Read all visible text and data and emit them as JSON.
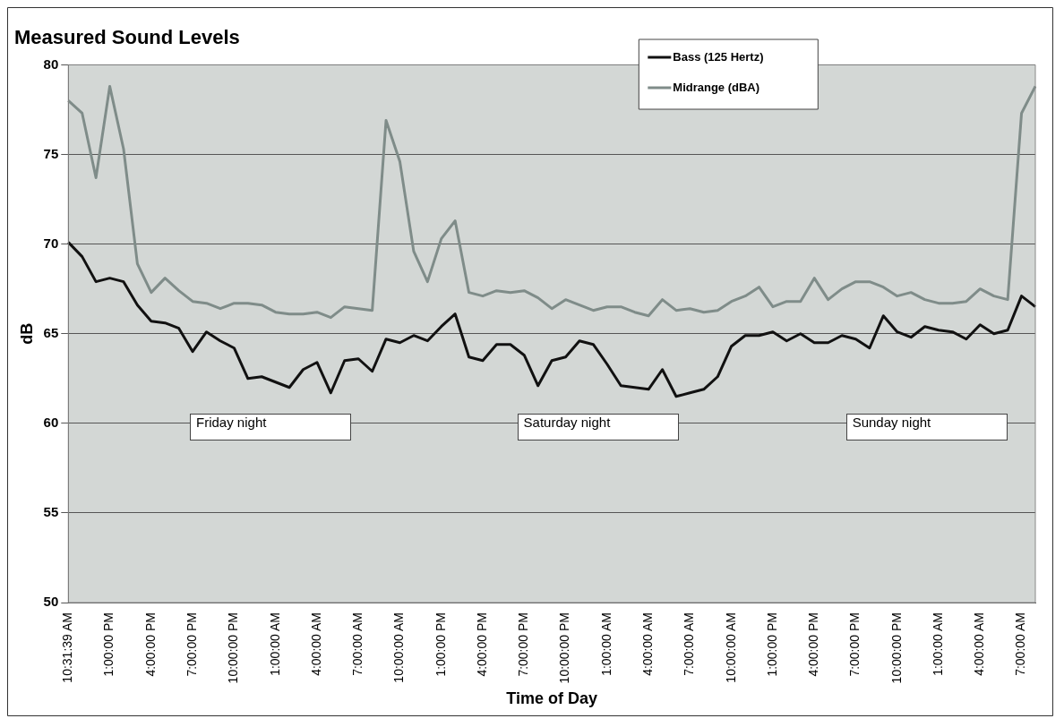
{
  "chart_data": {
    "type": "line",
    "title": "Measured Sound Levels",
    "xlabel": "Time of Day",
    "ylabel": "dB",
    "categories": [
      "10:31:39 AM",
      null,
      null,
      "1:00:00 PM",
      null,
      null,
      "4:00:00 PM",
      null,
      null,
      "7:00:00 PM",
      null,
      null,
      "10:00:00 PM",
      null,
      null,
      "1:00:00 AM",
      null,
      null,
      "4:00:00 AM",
      null,
      null,
      "7:00:00 AM",
      null,
      null,
      "10:00:00 AM",
      null,
      null,
      "1:00:00 PM",
      null,
      null,
      "4:00:00 PM",
      null,
      null,
      "7:00:00 PM",
      null,
      null,
      "10:00:00 PM",
      null,
      null,
      "1:00:00 AM",
      null,
      null,
      "4:00:00 AM",
      null,
      null,
      "7:00:00 AM",
      null,
      null,
      "10:00:00 AM",
      null,
      null,
      "1:00:00 PM",
      null,
      null,
      "4:00:00 PM",
      null,
      null,
      "7:00:00 PM",
      null,
      null,
      "10:00:00 PM",
      null,
      null,
      "1:00:00 AM",
      null,
      null,
      "4:00:00 AM",
      null,
      null,
      "7:00:00 AM",
      null
    ],
    "series": [
      {
        "name": "Bass (125 Hertz)",
        "color": "#111111",
        "values": [
          70.1,
          69.3,
          67.9,
          68.1,
          67.9,
          66.6,
          65.7,
          65.6,
          65.3,
          64.0,
          65.1,
          64.6,
          64.2,
          62.5,
          62.6,
          62.3,
          62.0,
          63.0,
          63.4,
          61.7,
          63.5,
          63.6,
          62.9,
          64.7,
          64.5,
          64.9,
          64.6,
          65.4,
          66.1,
          63.7,
          63.5,
          64.4,
          64.4,
          63.8,
          62.1,
          63.5,
          63.7,
          64.6,
          64.4,
          63.3,
          62.1,
          62.0,
          61.9,
          63.0,
          61.5,
          61.7,
          61.9,
          62.6,
          64.3,
          64.9,
          64.9,
          65.1,
          64.6,
          65.0,
          64.5,
          64.5,
          64.9,
          64.7,
          64.2,
          66.0,
          65.1,
          64.8,
          65.4,
          65.2,
          65.1,
          64.7,
          65.5,
          65.0,
          65.2,
          67.1,
          66.5
        ]
      },
      {
        "name": "Midrange (dBA)",
        "color": "#7f8c89",
        "values": [
          78.0,
          77.3,
          73.7,
          78.8,
          75.3,
          68.9,
          67.3,
          68.1,
          67.4,
          66.8,
          66.7,
          66.4,
          66.7,
          66.7,
          66.6,
          66.2,
          66.1,
          66.1,
          66.2,
          65.9,
          66.5,
          66.4,
          66.3,
          76.9,
          74.6,
          69.6,
          67.9,
          70.3,
          71.3,
          67.3,
          67.1,
          67.4,
          67.3,
          67.4,
          67.0,
          66.4,
          66.9,
          66.6,
          66.3,
          66.5,
          66.5,
          66.2,
          66.0,
          66.9,
          66.3,
          66.4,
          66.2,
          66.3,
          66.8,
          67.1,
          67.6,
          66.5,
          66.8,
          66.8,
          68.1,
          66.9,
          67.5,
          67.9,
          67.9,
          67.6,
          67.1,
          67.3,
          66.9,
          66.7,
          66.7,
          66.8,
          67.5,
          67.1,
          66.9,
          77.3,
          78.8
        ]
      }
    ],
    "ylim": [
      50,
      80
    ],
    "yticks": [
      50,
      55,
      60,
      65,
      70,
      75,
      80
    ],
    "grid": "y",
    "legend": "top right",
    "marker": "none",
    "line_style": "solid",
    "annotations": [
      "Friday night",
      "Saturday night",
      "Sunday night"
    ]
  }
}
